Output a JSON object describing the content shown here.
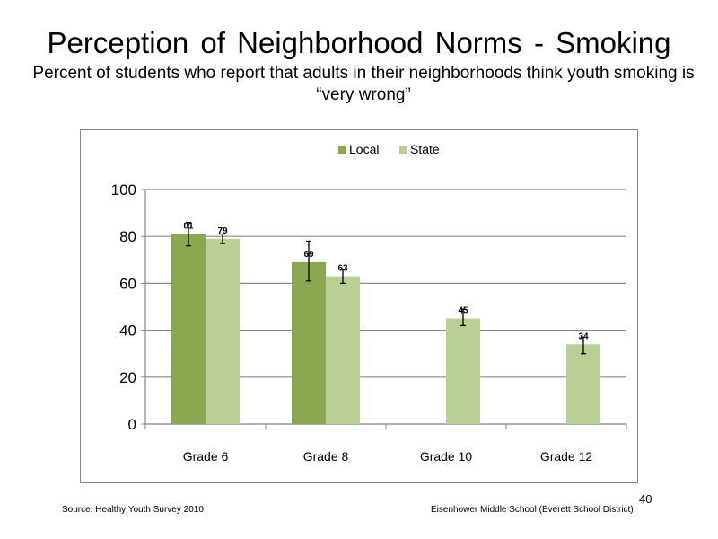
{
  "slide": {
    "title": "Perception  of Neighborhood  Norms - Smoking",
    "subtitle": "Percent of students who report that adults in their neighborhoods think youth smoking is “very wrong”",
    "source": "Source: Healthy  Youth Survey 2010",
    "school": "Eisenhower Middle  School  (Everett School District)",
    "page_number": "40"
  },
  "chart_data": {
    "type": "bar",
    "categories": [
      "Grade 6",
      "Grade 8",
      "Grade 10",
      "Grade 12"
    ],
    "series": [
      {
        "name": "Local",
        "color": "#8aa84f",
        "values": [
          81,
          69,
          null,
          null
        ],
        "labels": [
          "81",
          "69",
          "",
          ""
        ],
        "error": [
          [
            76,
            86
          ],
          [
            61,
            78
          ],
          null,
          null
        ]
      },
      {
        "name": "State",
        "color": "#b9cf96",
        "values": [
          79,
          63,
          45,
          34
        ],
        "labels": [
          "79",
          "63",
          "45",
          "34"
        ],
        "error": [
          [
            77,
            81
          ],
          [
            60,
            66
          ],
          [
            42,
            49
          ],
          [
            30,
            37
          ]
        ]
      }
    ],
    "ylim": [
      0,
      100
    ],
    "yticks": [
      0,
      20,
      40,
      60,
      80,
      100
    ],
    "grid": true,
    "legend": "top-center"
  }
}
